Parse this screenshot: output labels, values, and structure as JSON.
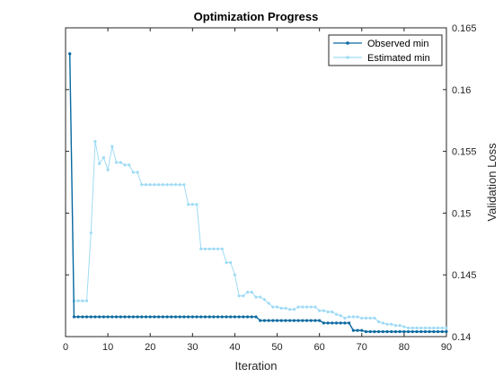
{
  "chart_data": {
    "type": "line",
    "title": "Optimization Progress",
    "xlabel": "Iteration",
    "ylabel": "Validation Loss",
    "xlim": [
      0,
      90
    ],
    "ylim": [
      0.14,
      0.165
    ],
    "xticks": [
      0,
      10,
      20,
      30,
      40,
      50,
      60,
      70,
      80,
      90
    ],
    "yticks": [
      0.14,
      0.145,
      0.15,
      0.155,
      0.16,
      0.165
    ],
    "ytick_labels": [
      "0.14",
      "0.145",
      "0.15",
      "0.155",
      "0.16",
      "0.165"
    ],
    "y_axis_side": "right",
    "grid": false,
    "legend_position": "top-right",
    "x": [
      1,
      2,
      3,
      4,
      5,
      6,
      7,
      8,
      9,
      10,
      11,
      12,
      13,
      14,
      15,
      16,
      17,
      18,
      19,
      20,
      21,
      22,
      23,
      24,
      25,
      26,
      27,
      28,
      29,
      30,
      31,
      32,
      33,
      34,
      35,
      36,
      37,
      38,
      39,
      40,
      41,
      42,
      43,
      44,
      45,
      46,
      47,
      48,
      49,
      50,
      51,
      52,
      53,
      54,
      55,
      56,
      57,
      58,
      59,
      60,
      61,
      62,
      63,
      64,
      65,
      66,
      67,
      68,
      69,
      70,
      71,
      72,
      73,
      74,
      75,
      76,
      77,
      78,
      79,
      80,
      81,
      82,
      83,
      84,
      85,
      86,
      87,
      88,
      89,
      90
    ],
    "series": [
      {
        "name": "Observed min",
        "color": "#0b6aa0",
        "values": [
          0.1629,
          0.1416,
          0.1416,
          0.1416,
          0.1416,
          0.1416,
          0.1416,
          0.1416,
          0.1416,
          0.1416,
          0.1416,
          0.1416,
          0.1416,
          0.1416,
          0.1416,
          0.1416,
          0.1416,
          0.1416,
          0.1416,
          0.1416,
          0.1416,
          0.1416,
          0.1416,
          0.1416,
          0.1416,
          0.1416,
          0.1416,
          0.1416,
          0.1416,
          0.1416,
          0.1416,
          0.1416,
          0.1416,
          0.1416,
          0.1416,
          0.1416,
          0.1416,
          0.1416,
          0.1416,
          0.1416,
          0.1416,
          0.1416,
          0.1416,
          0.1416,
          0.1416,
          0.1413,
          0.1413,
          0.1413,
          0.1413,
          0.1413,
          0.1413,
          0.1413,
          0.1413,
          0.1413,
          0.1413,
          0.1413,
          0.1413,
          0.1413,
          0.1413,
          0.1413,
          0.1411,
          0.1411,
          0.1411,
          0.1411,
          0.1411,
          0.1411,
          0.1411,
          0.1405,
          0.1405,
          0.1405,
          0.1404,
          0.1404,
          0.1404,
          0.1404,
          0.1404,
          0.1404,
          0.1404,
          0.1404,
          0.1404,
          0.1404,
          0.1404,
          0.1404,
          0.1404,
          0.1404,
          0.1404,
          0.1404,
          0.1404,
          0.1404,
          0.1404,
          0.1404
        ]
      },
      {
        "name": "Estimated min",
        "color": "#9fdbf5",
        "values": [
          0.1629,
          0.1429,
          0.1429,
          0.1429,
          0.1429,
          0.1484,
          0.1558,
          0.154,
          0.1545,
          0.1535,
          0.1554,
          0.1541,
          0.1541,
          0.1539,
          0.1539,
          0.1533,
          0.1533,
          0.1523,
          0.1523,
          0.1523,
          0.1523,
          0.1523,
          0.1523,
          0.1523,
          0.1523,
          0.1523,
          0.1523,
          0.1523,
          0.1507,
          0.1507,
          0.1507,
          0.1471,
          0.1471,
          0.1471,
          0.1471,
          0.1471,
          0.1471,
          0.146,
          0.146,
          0.145,
          0.1433,
          0.1433,
          0.1436,
          0.1436,
          0.1432,
          0.1432,
          0.143,
          0.1427,
          0.1424,
          0.1424,
          0.1423,
          0.1423,
          0.1422,
          0.1422,
          0.1424,
          0.1424,
          0.1424,
          0.1424,
          0.1424,
          0.1421,
          0.1421,
          0.142,
          0.142,
          0.1418,
          0.1417,
          0.1415,
          0.1416,
          0.1416,
          0.1416,
          0.1415,
          0.1415,
          0.1415,
          0.1415,
          0.1412,
          0.1411,
          0.141,
          0.141,
          0.1409,
          0.1409,
          0.1408,
          0.1407,
          0.1407,
          0.1407,
          0.1407,
          0.1407,
          0.1407,
          0.1407,
          0.1407,
          0.1407,
          0.1407
        ]
      }
    ]
  }
}
